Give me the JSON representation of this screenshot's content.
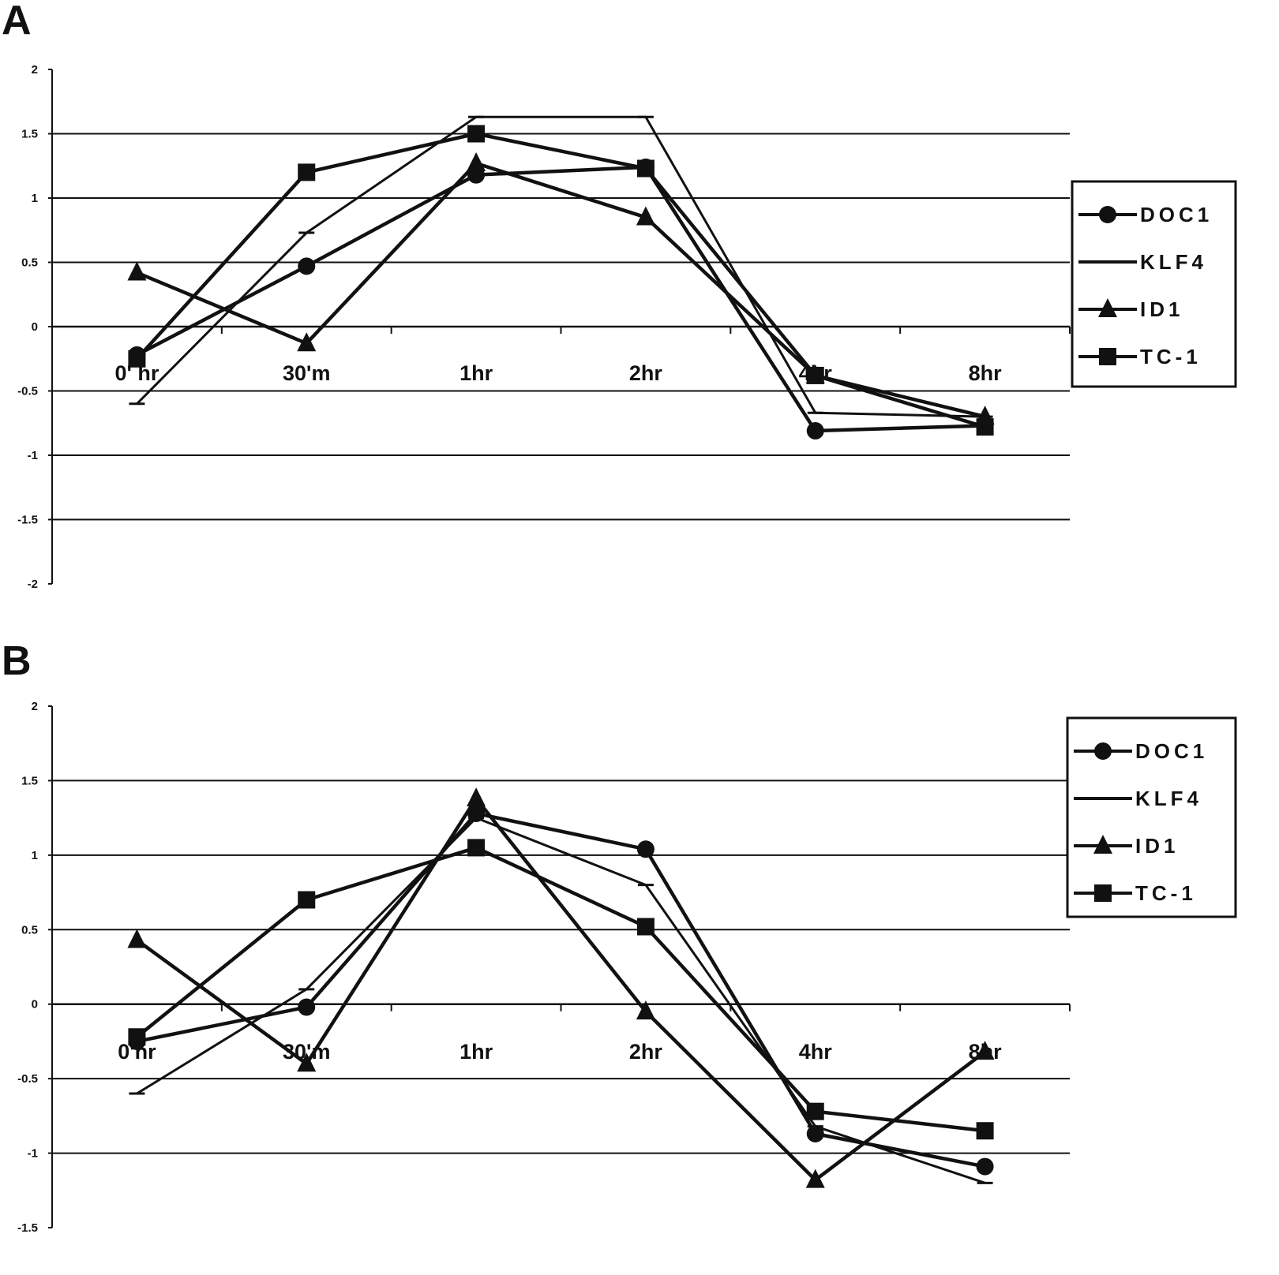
{
  "panels": [
    "A",
    "B"
  ],
  "chart_data": [
    {
      "type": "line",
      "panel": "A",
      "title": "",
      "xlabel": "",
      "ylabel": "",
      "ylim": [
        -2,
        2
      ],
      "yticks": [
        2,
        1.5,
        1,
        0.5,
        0,
        -0.5,
        -1,
        -1.5,
        -2
      ],
      "ytick_labels": [
        "2",
        "1.5",
        "1",
        "0.5",
        "0",
        "-0.5",
        "-1",
        "-1.5",
        "-2"
      ],
      "categories": [
        "0' hr",
        "30'm",
        "1hr",
        "2hr",
        "4hr",
        "8hr"
      ],
      "grid": true,
      "legend_position": "right",
      "series": [
        {
          "name": "DOC1",
          "marker": "diamond",
          "values": [
            -0.22,
            0.47,
            1.18,
            1.24,
            -0.81,
            -0.77
          ]
        },
        {
          "name": "KLF4",
          "marker": "none",
          "values": [
            -0.6,
            0.73,
            1.63,
            1.63,
            -0.67,
            -0.7
          ]
        },
        {
          "name": "ID1",
          "marker": "triangle",
          "values": [
            0.42,
            -0.13,
            1.27,
            0.85,
            -0.38,
            -0.7
          ]
        },
        {
          "name": "TC-1",
          "marker": "square",
          "values": [
            -0.25,
            1.2,
            1.5,
            1.23,
            -0.38,
            -0.78
          ]
        }
      ]
    },
    {
      "type": "line",
      "panel": "B",
      "title": "",
      "xlabel": "",
      "ylabel": "",
      "ylim": [
        -1.5,
        2
      ],
      "yticks": [
        2,
        1.5,
        1,
        0.5,
        0,
        -0.5,
        -1,
        -1.5
      ],
      "ytick_labels": [
        "2",
        "1.5",
        "1",
        "0.5",
        "0",
        "-0.5",
        "-1",
        "-1.5"
      ],
      "categories": [
        "0'hr",
        "30'm",
        "1hr",
        "2hr",
        "4hr",
        "8hr"
      ],
      "grid": true,
      "legend_position": "top-right",
      "series": [
        {
          "name": "DOC1",
          "marker": "diamond",
          "values": [
            -0.25,
            -0.02,
            1.28,
            1.04,
            -0.87,
            -1.09
          ]
        },
        {
          "name": "KLF4",
          "marker": "none",
          "values": [
            -0.6,
            0.1,
            1.25,
            0.8,
            -0.82,
            -1.2
          ]
        },
        {
          "name": "ID1",
          "marker": "triangle",
          "values": [
            0.43,
            -0.4,
            1.38,
            -0.05,
            -1.18,
            -0.32
          ]
        },
        {
          "name": "TC-1",
          "marker": "square",
          "values": [
            -0.22,
            0.7,
            1.05,
            0.52,
            -0.72,
            -0.85
          ]
        }
      ]
    }
  ]
}
